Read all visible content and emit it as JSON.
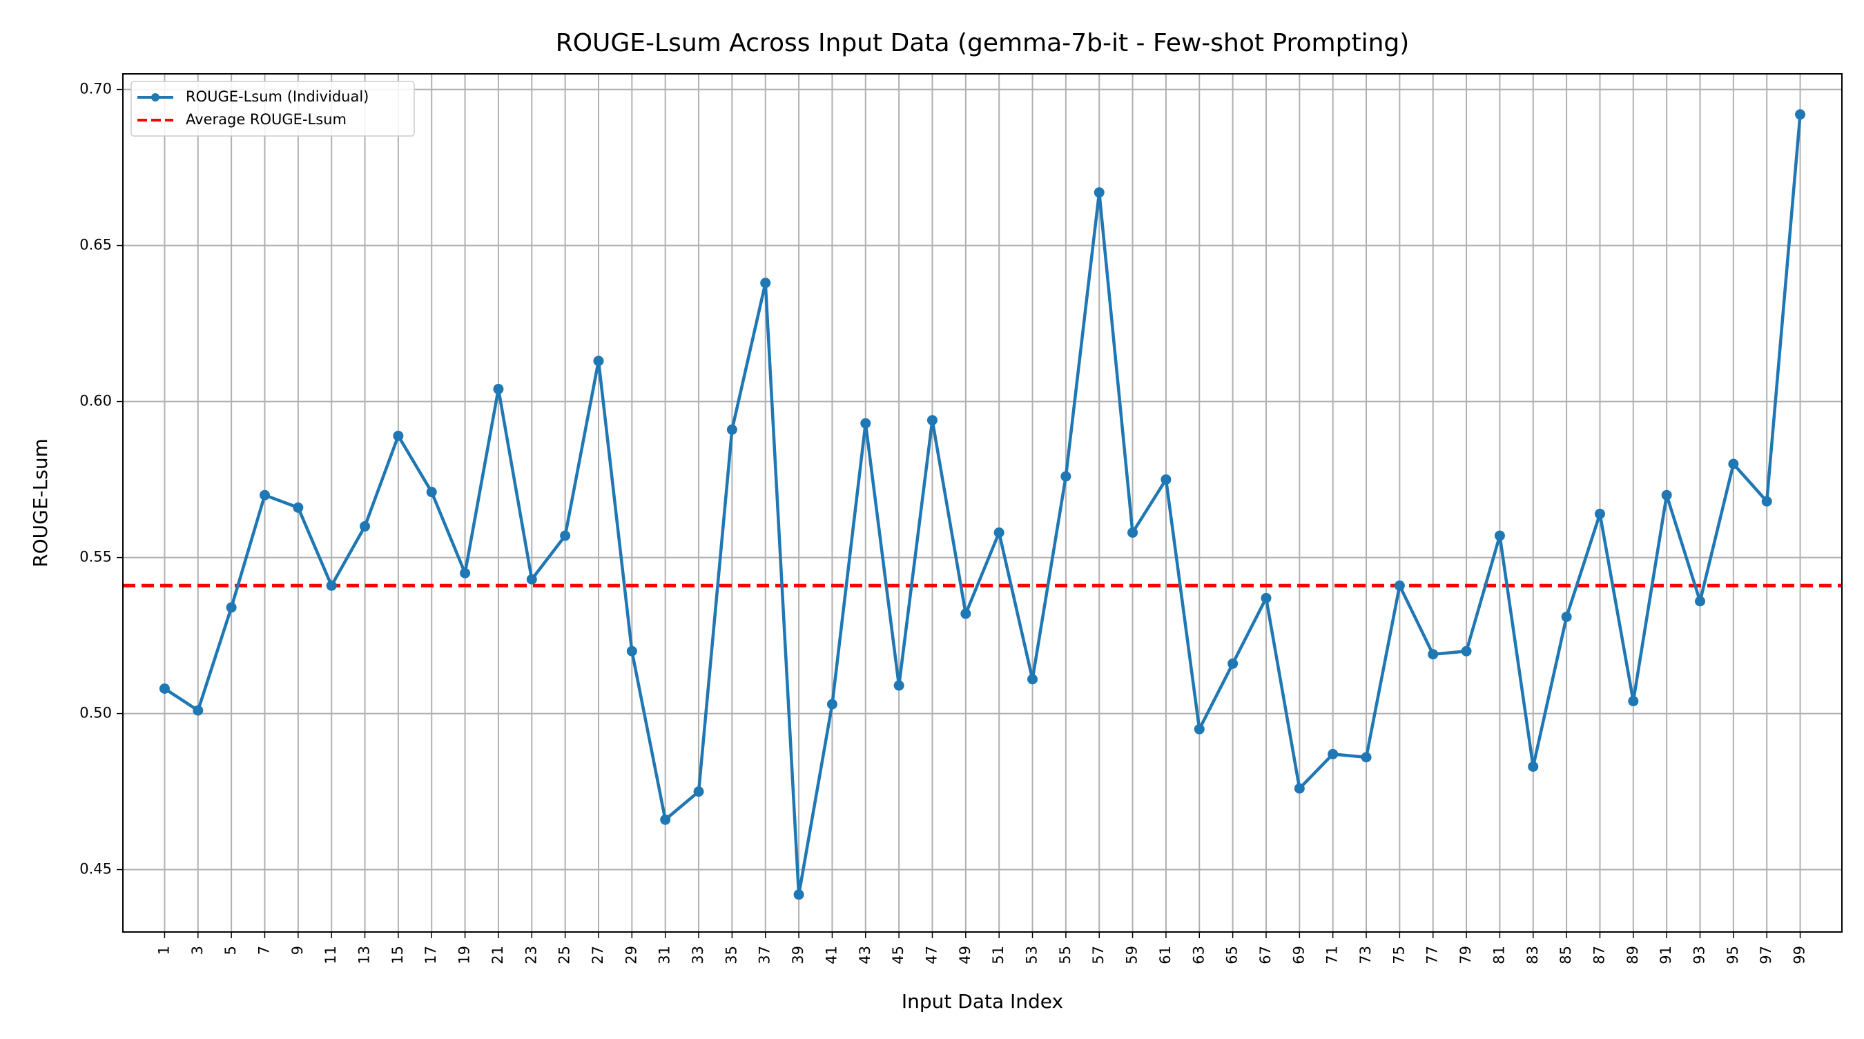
{
  "chart_data": {
    "type": "line",
    "title": "ROUGE-Lsum Across Input Data (gemma-7b-it - Few-shot Prompting)",
    "xlabel": "Input Data Index",
    "ylabel": "ROUGE-Lsum",
    "xlim": [
      -1.5,
      101.5
    ],
    "ylim": [
      0.43,
      0.705
    ],
    "x_ticks": [
      1,
      3,
      5,
      7,
      9,
      11,
      13,
      15,
      17,
      19,
      21,
      23,
      25,
      27,
      29,
      31,
      33,
      35,
      37,
      39,
      41,
      43,
      45,
      47,
      49,
      51,
      53,
      55,
      57,
      59,
      61,
      63,
      65,
      67,
      69,
      71,
      73,
      75,
      77,
      79,
      81,
      83,
      85,
      87,
      89,
      91,
      93,
      95,
      97,
      99
    ],
    "y_ticks": [
      0.45,
      0.5,
      0.55,
      0.6,
      0.65,
      0.7
    ],
    "y_tick_labels": [
      "0.45",
      "0.50",
      "0.55",
      "0.60",
      "0.65",
      "0.70"
    ],
    "grid": true,
    "legend_placement": "top-left",
    "series": [
      {
        "name": "ROUGE-Lsum (Individual)",
        "style": "line-marker",
        "color": "#1f77b4",
        "x": [
          1,
          3,
          5,
          7,
          9,
          11,
          13,
          15,
          17,
          19,
          21,
          23,
          25,
          27,
          29,
          31,
          33,
          35,
          37,
          39,
          41,
          43,
          45,
          47,
          49,
          51,
          53,
          55,
          57,
          59,
          61,
          63,
          65,
          67,
          69,
          71,
          73,
          75,
          77,
          79,
          81,
          83,
          85,
          87,
          89,
          91,
          93,
          95,
          97,
          99
        ],
        "values": [
          0.508,
          0.501,
          0.534,
          0.57,
          0.566,
          0.541,
          0.56,
          0.589,
          0.571,
          0.545,
          0.604,
          0.543,
          0.557,
          0.613,
          0.52,
          0.466,
          0.475,
          0.591,
          0.638,
          0.442,
          0.503,
          0.593,
          0.509,
          0.594,
          0.532,
          0.558,
          0.511,
          0.576,
          0.667,
          0.558,
          0.575,
          0.495,
          0.516,
          0.537,
          0.476,
          0.487,
          0.486,
          0.541,
          0.519,
          0.52,
          0.557,
          0.483,
          0.531,
          0.564,
          0.504,
          0.57,
          0.536,
          0.58,
          0.568,
          0.692
        ]
      },
      {
        "name": "Average ROUGE-Lsum",
        "style": "dashed-horizontal",
        "color": "#ff0000",
        "values": [
          0.541
        ]
      }
    ]
  }
}
